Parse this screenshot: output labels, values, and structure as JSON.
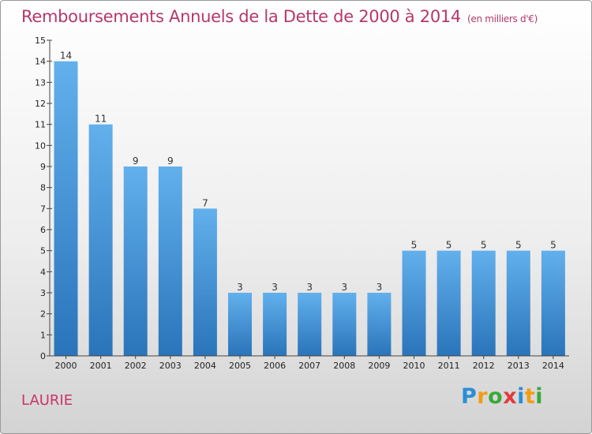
{
  "title": "Remboursements Annuels de la Dette de 2000 à 2014",
  "unit": "(en milliers d'€)",
  "commune": "LAURIE",
  "logo": {
    "letters": [
      "P",
      "r",
      "o",
      "x",
      "i",
      "t",
      "i"
    ],
    "colors": [
      "#2a8fd6",
      "#f39c12",
      "#3aa83a",
      "#e33b3b",
      "#2a8fd6",
      "#f39c12",
      "#3aa83a"
    ]
  },
  "chart_data": {
    "type": "bar",
    "title": "Remboursements Annuels de la Dette de 2000 à 2014",
    "categories": [
      "2000",
      "2001",
      "2002",
      "2003",
      "2004",
      "2005",
      "2006",
      "2007",
      "2008",
      "2009",
      "2010",
      "2011",
      "2012",
      "2013",
      "2014"
    ],
    "values": [
      14,
      11,
      9,
      9,
      7,
      3,
      3,
      3,
      3,
      3,
      5,
      5,
      5,
      5,
      5
    ],
    "data_labels": [
      "14",
      "11",
      "9",
      "9",
      "7",
      "3",
      "3",
      "3",
      "3",
      "3",
      "5",
      "5",
      "5",
      "5",
      "5"
    ],
    "ylim": [
      0,
      15
    ],
    "yticks": [
      0,
      1,
      2,
      3,
      4,
      5,
      6,
      7,
      8,
      9,
      10,
      11,
      12,
      13,
      14,
      15
    ],
    "grid": false,
    "bar_color": "#4a9ee0"
  }
}
